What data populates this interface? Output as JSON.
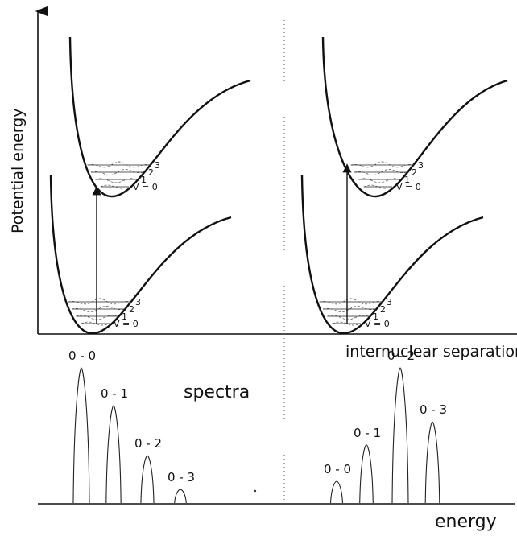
{
  "axes": {
    "y_label": "Potential energy",
    "x_label": "internuclear separation",
    "energy_label": "energy"
  },
  "spectra_label": "spectra",
  "vibrational_levels": [
    "3",
    "2",
    "1",
    "V = 0"
  ],
  "left_panel": {
    "peaks": [
      {
        "label": "0 - 0",
        "intensity": 1.0
      },
      {
        "label": "0 - 1",
        "intensity": 0.72
      },
      {
        "label": "0 - 2",
        "intensity": 0.35
      },
      {
        "label": "0 - 3",
        "intensity": 0.1
      }
    ]
  },
  "right_panel": {
    "peaks": [
      {
        "label": "0 - 0",
        "intensity": 0.16
      },
      {
        "label": "0 - 1",
        "intensity": 0.43
      },
      {
        "label": "0 - 2",
        "intensity": 1.0
      },
      {
        "label": "0 - 3",
        "intensity": 0.6
      }
    ]
  }
}
